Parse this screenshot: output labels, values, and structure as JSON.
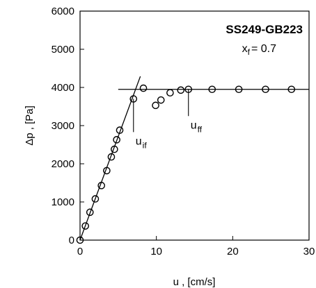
{
  "chart_data": {
    "type": "scatter",
    "title": "SS249-GB223",
    "xlabel": "u , [cm/s]",
    "ylabel": "Δp , [Pa]",
    "xlim": [
      0,
      30
    ],
    "ylim": [
      0,
      6000
    ],
    "xticks": [
      0,
      10,
      20,
      30
    ],
    "yticks": [
      0,
      1000,
      2000,
      3000,
      4000,
      5000,
      6000
    ],
    "xtick_labels": [
      "0",
      "10",
      "20",
      "30"
    ],
    "ytick_labels": [
      "0",
      "1000",
      "2000",
      "3000",
      "4000",
      "5000",
      "6000"
    ],
    "grid": false,
    "annotation": {
      "xf_prefix": "x",
      "xf_sub": "f",
      "xf_rest": "= 0.7"
    },
    "series": [
      {
        "marker": "open-circle",
        "color": "#000000",
        "points": [
          [
            0.0,
            0
          ],
          [
            0.7,
            370
          ],
          [
            1.3,
            730
          ],
          [
            2.0,
            1080
          ],
          [
            2.8,
            1430
          ],
          [
            3.5,
            1820
          ],
          [
            4.1,
            2180
          ],
          [
            4.5,
            2380
          ],
          [
            4.8,
            2630
          ],
          [
            5.2,
            2880
          ],
          [
            7.0,
            3700
          ],
          [
            8.3,
            3980
          ],
          [
            9.9,
            3530
          ],
          [
            10.6,
            3670
          ],
          [
            11.8,
            3860
          ],
          [
            13.2,
            3930
          ],
          [
            14.2,
            3950
          ],
          [
            17.3,
            3950
          ],
          [
            20.8,
            3950
          ],
          [
            24.3,
            3950
          ],
          [
            27.7,
            3950
          ]
        ]
      }
    ],
    "fit_lines": [
      {
        "name": "rising",
        "x": [
          0,
          7.9
        ],
        "y": [
          0,
          4290
        ]
      },
      {
        "name": "plateau",
        "x": [
          5.0,
          30
        ],
        "y": [
          3950,
          3950
        ]
      }
    ],
    "markers": [
      {
        "label": "u",
        "sub": "if",
        "x": 7.0,
        "y_from": 2830,
        "y_to": 3700
      },
      {
        "label": "u",
        "sub": "ff",
        "x": 14.2,
        "y_from": 3250,
        "y_to": 3950
      }
    ]
  }
}
